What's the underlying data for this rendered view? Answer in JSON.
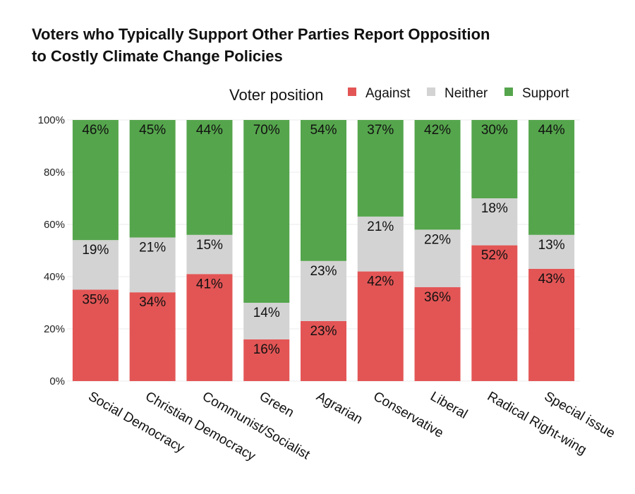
{
  "chart_data": {
    "type": "bar",
    "stacked": true,
    "title": "Voters who Typically Support Other Parties Report Opposition to Costly Climate Change Policies",
    "title_lines": [
      "Voters who Typically Support Other Parties Report Opposition",
      "to Costly Climate Change Policies"
    ],
    "legend_title": "Voter position",
    "legend_position": "top-right",
    "xlabel": "",
    "ylabel": "",
    "ylim": [
      0,
      100
    ],
    "y_ticks": [
      0,
      20,
      40,
      60,
      80,
      100
    ],
    "y_tick_labels": [
      "0%",
      "20%",
      "40%",
      "60%",
      "80%",
      "100%"
    ],
    "grid": true,
    "categories": [
      "Social Democracy",
      "Christian Democracy",
      "Communist/Socialist",
      "Green",
      "Agrarian",
      "Conservative",
      "Liberal",
      "Radical Right-wing",
      "Special issue"
    ],
    "series": [
      {
        "name": "Against",
        "color": "#e35555",
        "values": [
          35,
          34,
          41,
          16,
          23,
          42,
          36,
          52,
          43
        ],
        "labels": [
          "35%",
          "34%",
          "41%",
          "16%",
          "23%",
          "42%",
          "36%",
          "52%",
          "43%"
        ]
      },
      {
        "name": "Neither",
        "color": "#d3d3d3",
        "values": [
          19,
          21,
          15,
          14,
          23,
          21,
          22,
          18,
          13
        ],
        "labels": [
          "19%",
          "21%",
          "15%",
          "14%",
          "23%",
          "21%",
          "22%",
          "18%",
          "13%"
        ]
      },
      {
        "name": "Support",
        "color": "#55a54c",
        "values": [
          46,
          45,
          44,
          70,
          54,
          37,
          42,
          30,
          44
        ],
        "labels": [
          "46%",
          "45%",
          "44%",
          "70%",
          "54%",
          "37%",
          "42%",
          "30%",
          "44%"
        ]
      }
    ]
  }
}
